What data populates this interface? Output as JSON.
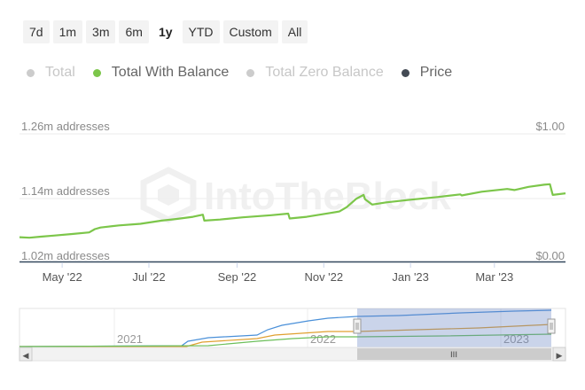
{
  "range_selector": {
    "buttons": [
      "7d",
      "1m",
      "3m",
      "6m",
      "1y",
      "YTD",
      "Custom",
      "All"
    ],
    "active": "1y"
  },
  "legend": [
    {
      "label": "Total",
      "color": "#cccccc",
      "visible": false
    },
    {
      "label": "Total With Balance",
      "color": "#7cc64a",
      "visible": true
    },
    {
      "label": "Total Zero Balance",
      "color": "#cccccc",
      "visible": false
    },
    {
      "label": "Price",
      "color": "#434a54",
      "visible": true
    }
  ],
  "watermark": "IntoTheBlock",
  "chart_data": {
    "type": "line",
    "x_start": "2022-04-01",
    "x_end": "2023-03-31",
    "x_ticks": [
      {
        "date": "2022-05-01",
        "label": "May '22"
      },
      {
        "date": "2022-07-01",
        "label": "Jul '22"
      },
      {
        "date": "2022-09-01",
        "label": "Sep '22"
      },
      {
        "date": "2022-11-01",
        "label": "Nov '22"
      },
      {
        "date": "2023-01-01",
        "label": "Jan '23"
      },
      {
        "date": "2023-03-01",
        "label": "Mar '23"
      }
    ],
    "y_left": {
      "ticks": [
        "1.02m addresses",
        "1.14m addresses",
        "1.26m addresses"
      ],
      "range": [
        1.02,
        1.26
      ],
      "unit": "m addresses"
    },
    "y_right": {
      "ticks": [
        "$0.00",
        "$1.00"
      ],
      "range": [
        0,
        1
      ]
    },
    "series": [
      {
        "name": "Total With Balance",
        "color": "#7cc64a",
        "points": [
          [
            "2022-04-01",
            1.067
          ],
          [
            "2022-04-08",
            1.066
          ],
          [
            "2022-04-16",
            1.068
          ],
          [
            "2022-04-25",
            1.07
          ],
          [
            "2022-05-08",
            1.073
          ],
          [
            "2022-05-20",
            1.076
          ],
          [
            "2022-05-24",
            1.082
          ],
          [
            "2022-05-28",
            1.085
          ],
          [
            "2022-06-10",
            1.089
          ],
          [
            "2022-06-25",
            1.092
          ],
          [
            "2022-07-10",
            1.098
          ],
          [
            "2022-07-20",
            1.101
          ],
          [
            "2022-08-01",
            1.105
          ],
          [
            "2022-08-08",
            1.109
          ],
          [
            "2022-08-09",
            1.098
          ],
          [
            "2022-08-20",
            1.1
          ],
          [
            "2022-09-05",
            1.104
          ],
          [
            "2022-09-25",
            1.108
          ],
          [
            "2022-10-07",
            1.111
          ],
          [
            "2022-10-08",
            1.102
          ],
          [
            "2022-10-20",
            1.105
          ],
          [
            "2022-11-05",
            1.112
          ],
          [
            "2022-11-12",
            1.115
          ],
          [
            "2022-11-17",
            1.123
          ],
          [
            "2022-11-24",
            1.139
          ],
          [
            "2022-11-29",
            1.146
          ],
          [
            "2022-11-30",
            1.138
          ],
          [
            "2022-12-05",
            1.128
          ],
          [
            "2022-12-15",
            1.132
          ],
          [
            "2023-01-01",
            1.137
          ],
          [
            "2023-01-20",
            1.142
          ],
          [
            "2023-02-05",
            1.147
          ],
          [
            "2023-02-06",
            1.145
          ],
          [
            "2023-02-20",
            1.152
          ],
          [
            "2023-03-10",
            1.157
          ],
          [
            "2023-03-15",
            1.155
          ],
          [
            "2023-03-25",
            1.161
          ],
          [
            "2023-04-05",
            1.165
          ],
          [
            "2023-04-09",
            1.166
          ],
          [
            "2023-04-11",
            1.146
          ],
          [
            "2023-04-20",
            1.149
          ]
        ]
      }
    ]
  },
  "navigator": {
    "year_labels": [
      "2021",
      "2022",
      "2023"
    ],
    "scroll_left": "◀",
    "scroll_right": "▶",
    "handle_grip": "III"
  }
}
